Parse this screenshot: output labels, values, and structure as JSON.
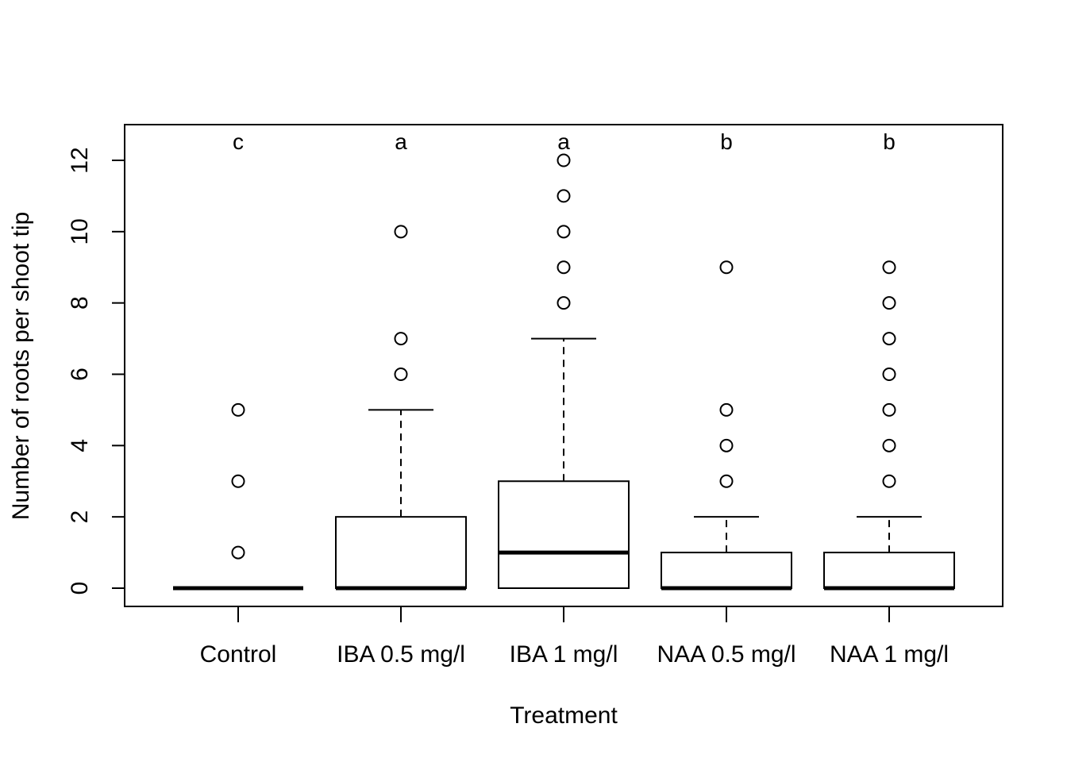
{
  "chart_data": {
    "type": "boxplot",
    "title": "",
    "xlabel": "Treatment",
    "ylabel": "Number of roots per shoot tip",
    "ylim": [
      -0.5,
      13
    ],
    "yticks": [
      0,
      2,
      4,
      6,
      8,
      10,
      12
    ],
    "grid": false,
    "categories": [
      "Control",
      "IBA 0.5 mg/l",
      "IBA 1 mg/l",
      "NAA 0.5 mg/l",
      "NAA 1 mg/l"
    ],
    "groups": [
      {
        "category": "Control",
        "min": 0,
        "q1": 0,
        "median": 0,
        "q3": 0,
        "max": 0,
        "outliers": [
          1,
          3,
          5
        ],
        "letter": "c"
      },
      {
        "category": "IBA 0.5 mg/l",
        "min": 0,
        "q1": 0,
        "median": 0,
        "q3": 2,
        "max": 5,
        "outliers": [
          6,
          7,
          10
        ],
        "letter": "a"
      },
      {
        "category": "IBA 1 mg/l",
        "min": 0,
        "q1": 0,
        "median": 1,
        "q3": 3,
        "max": 7,
        "outliers": [
          8,
          9,
          10,
          11,
          12
        ],
        "letter": "a"
      },
      {
        "category": "NAA 0.5 mg/l",
        "min": 0,
        "q1": 0,
        "median": 0,
        "q3": 1,
        "max": 2,
        "outliers": [
          3,
          4,
          5,
          9
        ],
        "letter": "b"
      },
      {
        "category": "NAA 1 mg/l",
        "min": 0,
        "q1": 0,
        "median": 0,
        "q3": 1,
        "max": 2,
        "outliers": [
          3,
          4,
          5,
          6,
          7,
          8,
          9
        ],
        "letter": "b"
      }
    ]
  }
}
